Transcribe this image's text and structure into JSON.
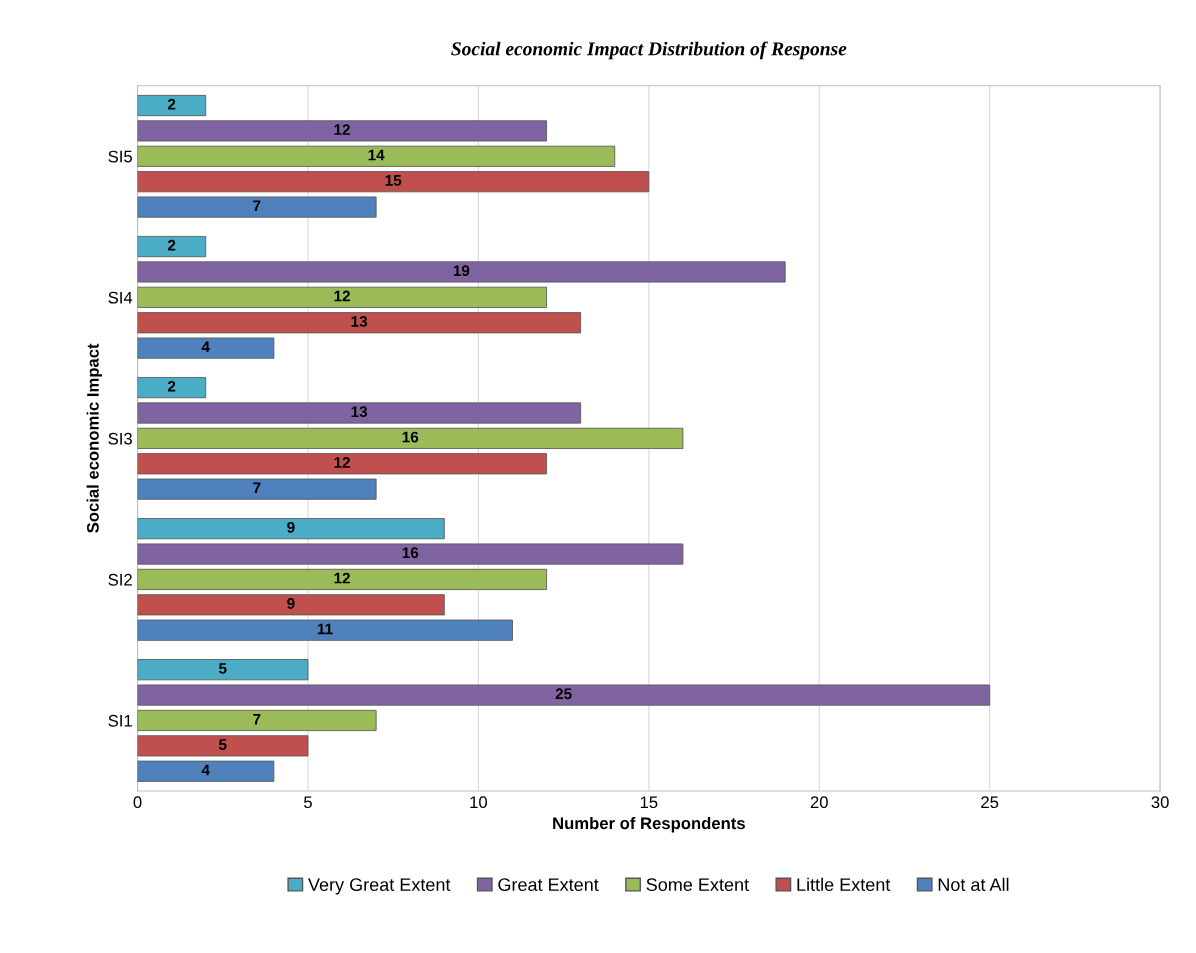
{
  "chart_data": {
    "type": "bar",
    "orientation": "horizontal",
    "title": "Social economic Impact Distribution of Response",
    "xlabel": "Number of Respondents",
    "ylabel": "Social economic Impact",
    "categories": [
      "SI5",
      "SI4",
      "SI3",
      "SI2",
      "SI1"
    ],
    "series": [
      {
        "name": "Very Great Extent",
        "color": "#4bacc6",
        "values": [
          2,
          2,
          2,
          9,
          5
        ]
      },
      {
        "name": "Great Extent",
        "color": "#8064a2",
        "values": [
          12,
          19,
          13,
          16,
          25
        ]
      },
      {
        "name": "Some Extent",
        "color": "#9bbb59",
        "values": [
          14,
          12,
          16,
          12,
          7
        ]
      },
      {
        "name": "Little Extent",
        "color": "#c0504d",
        "values": [
          15,
          13,
          12,
          9,
          5
        ]
      },
      {
        "name": "Not at All",
        "color": "#4f81bd",
        "values": [
          7,
          4,
          7,
          11,
          4
        ]
      }
    ],
    "xlim": [
      0,
      30
    ],
    "xticks": [
      0,
      5,
      10,
      15,
      20,
      25,
      30
    ],
    "grid": "x",
    "legend": "bottom",
    "data_labels": true
  }
}
